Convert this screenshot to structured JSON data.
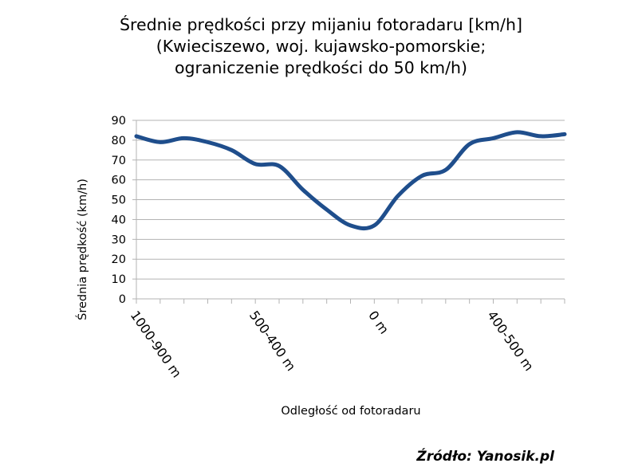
{
  "chart_data": {
    "type": "line",
    "title": [
      "Średnie prędkości przy mijaniu fotoradaru [km/h]",
      "(Kwieciszewo, woj. kujawsko-pomorskie;",
      "ograniczenie prędkości do 50 km/h)"
    ],
    "xlabel": "Odległość od fotoradaru",
    "ylabel": "Średnia prędkość (km/h)",
    "ylim": [
      0,
      90
    ],
    "yticks": [
      0,
      10,
      20,
      30,
      40,
      50,
      60,
      70,
      80,
      90
    ],
    "grid": true,
    "legend": "none",
    "line_color": "#1f4e8c",
    "category_labels": [
      {
        "index": 0,
        "label": "1000-900 m"
      },
      {
        "index": 5,
        "label": "500-400 m"
      },
      {
        "index": 10,
        "label": "0 m"
      },
      {
        "index": 15,
        "label": "400-500 m"
      }
    ],
    "series": [
      {
        "values": [
          82,
          79,
          81,
          79,
          75,
          68,
          67,
          55,
          45,
          37,
          37,
          52,
          62,
          65,
          78,
          81,
          84,
          82,
          83
        ]
      }
    ]
  },
  "source": "Źródło: Yanosik.pl"
}
